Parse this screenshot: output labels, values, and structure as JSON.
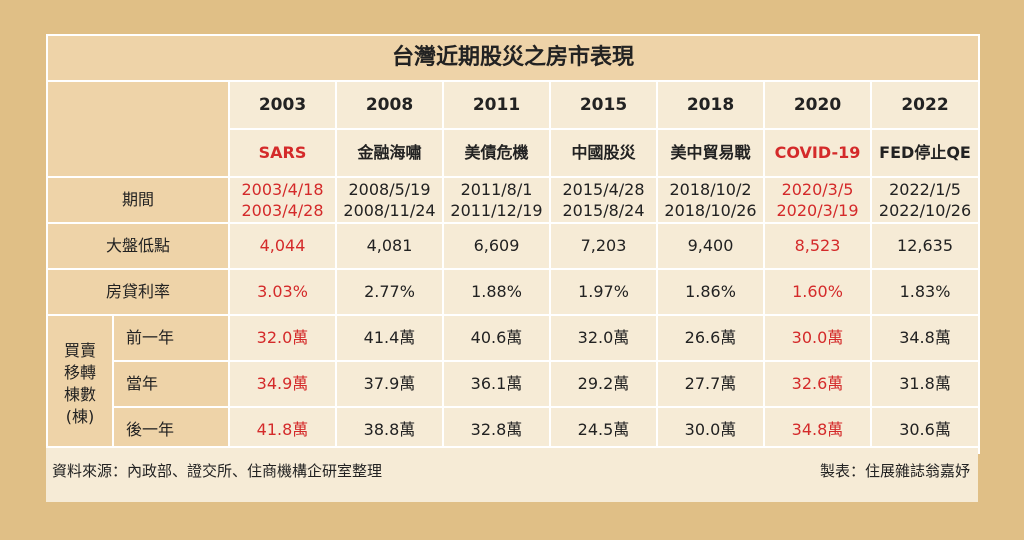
{
  "title": "台灣近期股災之房市表現",
  "columns": [
    {
      "year": "2003",
      "event": "SARS",
      "period_start": "2003/4/18",
      "period_end": "2003/4/28",
      "market_low": "4,044",
      "mortgage_rate": "3.03%",
      "prev_year": "32.0萬",
      "same_year": "34.9萬",
      "next_year": "41.8萬",
      "highlight": true
    },
    {
      "year": "2008",
      "event": "金融海嘯",
      "period_start": "2008/5/19",
      "period_end": "2008/11/24",
      "market_low": "4,081",
      "mortgage_rate": "2.77%",
      "prev_year": "41.4萬",
      "same_year": "37.9萬",
      "next_year": "38.8萬",
      "highlight": false
    },
    {
      "year": "2011",
      "event": "美債危機",
      "period_start": "2011/8/1",
      "period_end": "2011/12/19",
      "market_low": "6,609",
      "mortgage_rate": "1.88%",
      "prev_year": "40.6萬",
      "same_year": "36.1萬",
      "next_year": "32.8萬",
      "highlight": false
    },
    {
      "year": "2015",
      "event": "中國股災",
      "period_start": "2015/4/28",
      "period_end": "2015/8/24",
      "market_low": "7,203",
      "mortgage_rate": "1.97%",
      "prev_year": "32.0萬",
      "same_year": "29.2萬",
      "next_year": "24.5萬",
      "highlight": false
    },
    {
      "year": "2018",
      "event": "美中貿易戰",
      "period_start": "2018/10/2",
      "period_end": "2018/10/26",
      "market_low": "9,400",
      "mortgage_rate": "1.86%",
      "prev_year": "26.6萬",
      "same_year": "27.7萬",
      "next_year": "30.0萬",
      "highlight": false
    },
    {
      "year": "2020",
      "event": "COVID-19",
      "period_start": "2020/3/5",
      "period_end": "2020/3/19",
      "market_low": "8,523",
      "mortgage_rate": "1.60%",
      "prev_year": "30.0萬",
      "same_year": "32.6萬",
      "next_year": "34.8萬",
      "highlight": true
    },
    {
      "year": "2022",
      "event": "FED停止QE",
      "period_start": "2022/1/5",
      "period_end": "2022/10/26",
      "market_low": "12,635",
      "mortgage_rate": "1.83%",
      "prev_year": "34.8萬",
      "same_year": "31.8萬",
      "next_year": "30.6萬",
      "highlight": false
    }
  ],
  "row_labels": {
    "period": "期間",
    "market_low": "大盤低點",
    "mortgage_rate": "房貸利率",
    "transactions_line1": "買賣",
    "transactions_line2": "移轉",
    "transactions_line3": "棟數",
    "transactions_line4": "(棟)",
    "prev_year": "前一年",
    "same_year": "當年",
    "next_year": "後一年"
  },
  "footer": {
    "source": "資料來源：內政部、證交所、住商機構企研室整理",
    "maker": "製表：住展雜誌翁嘉妤"
  },
  "colors": {
    "page_bg": "#e0bf86",
    "cell_bg": "#f6ebd6",
    "header_bg": "#eed3a8",
    "highlight": "#d42a2a"
  }
}
